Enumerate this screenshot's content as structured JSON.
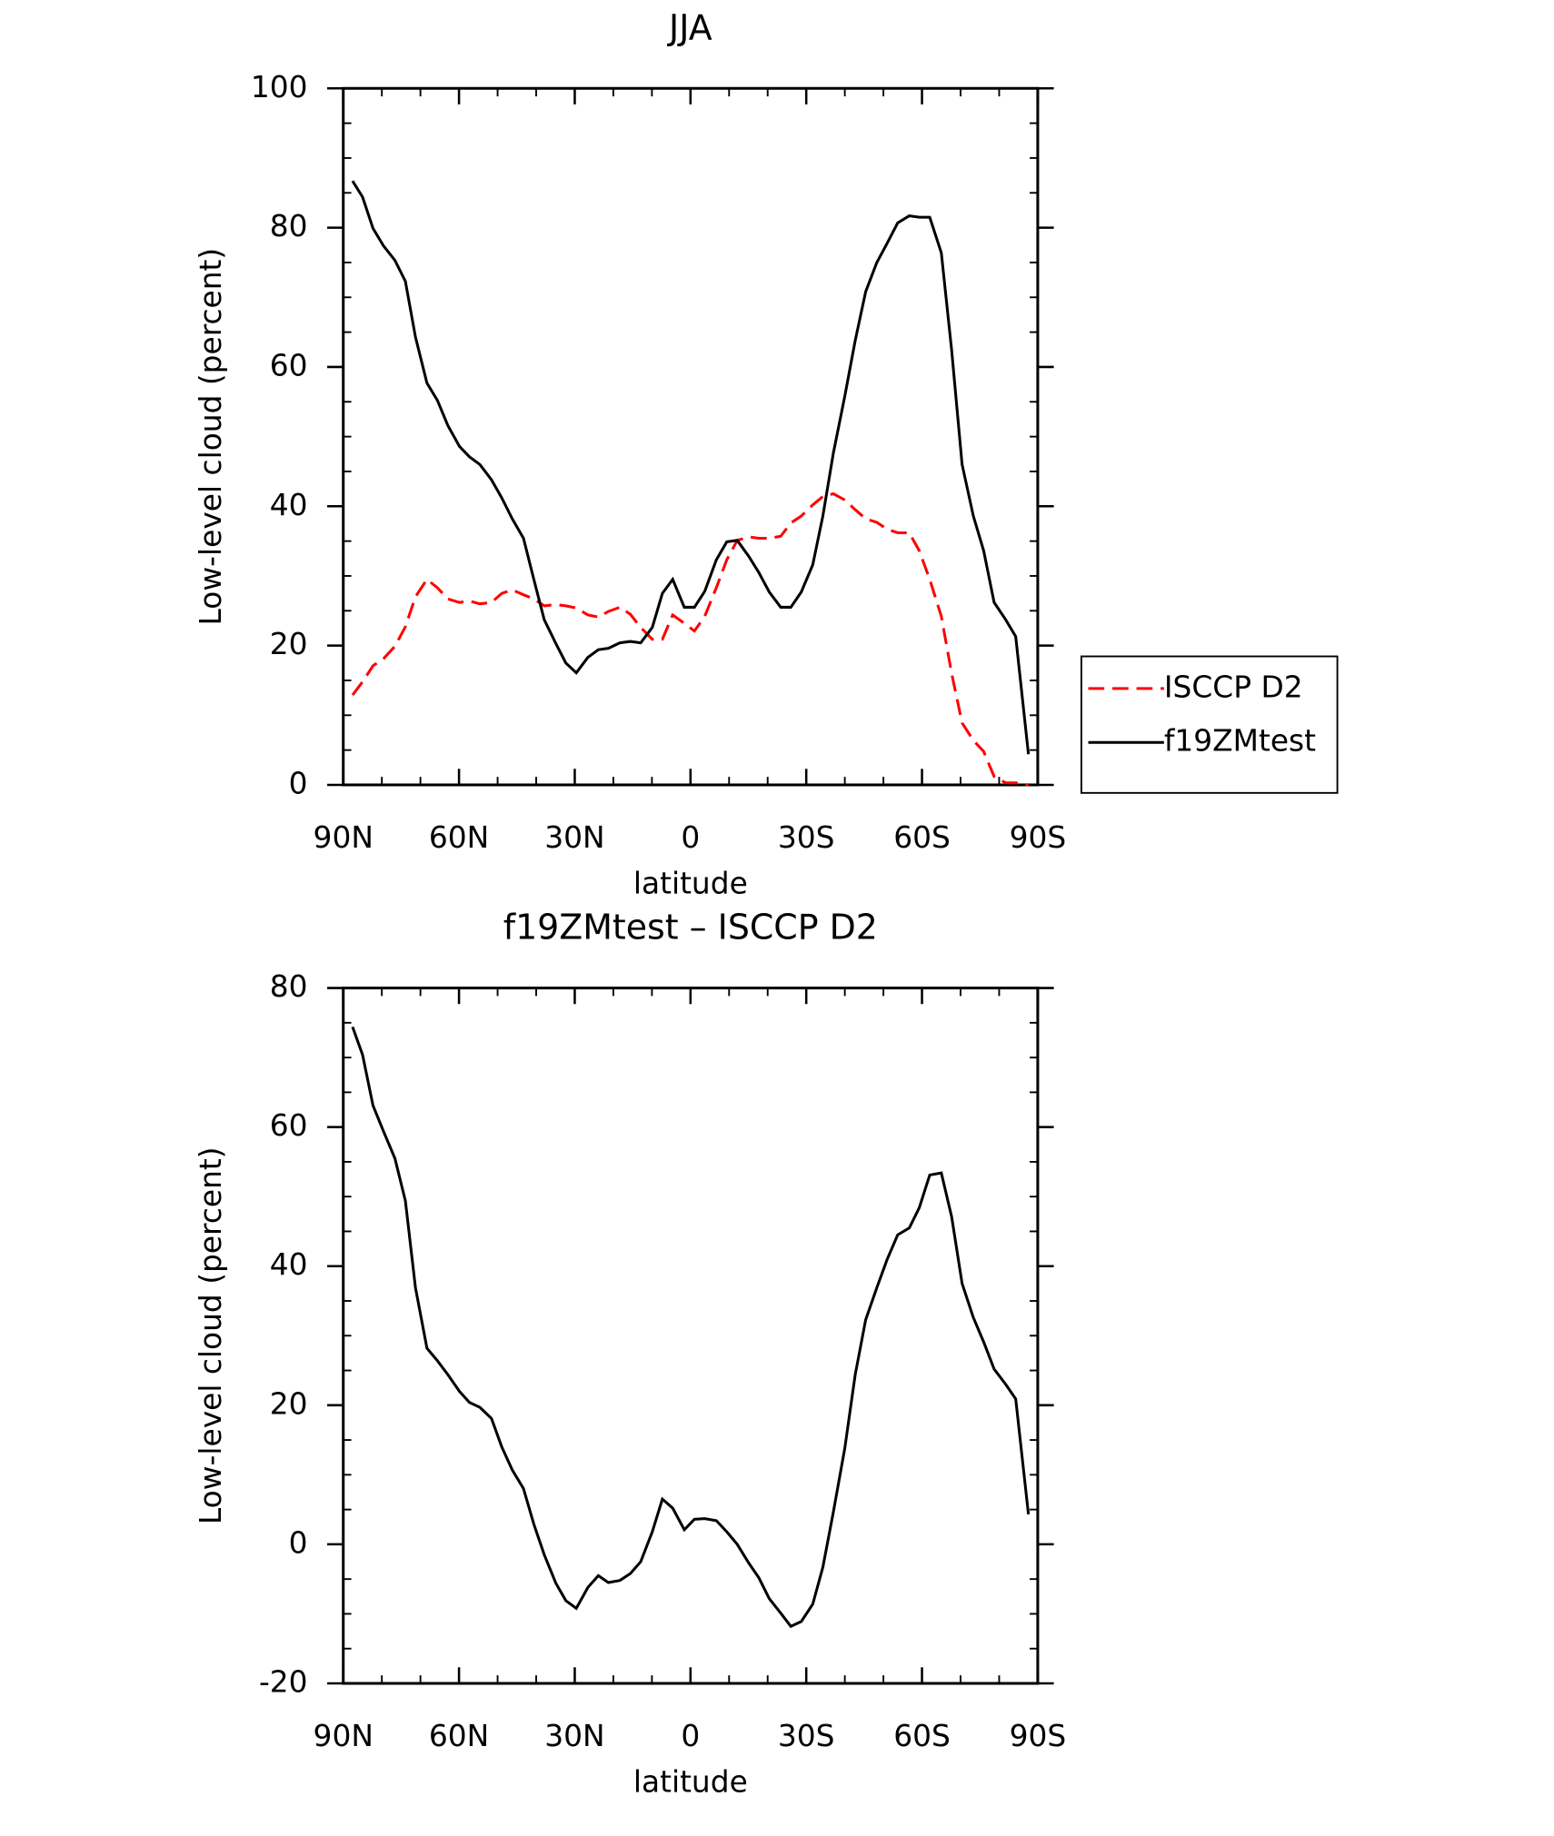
{
  "chart_data": [
    {
      "type": "line",
      "title": "JJA",
      "x_label": "latitude",
      "y_label": "Low-level cloud (percent)",
      "x": [
        87.6,
        85,
        82.3,
        79.6,
        76.6,
        73.9,
        71.3,
        68.3,
        65.6,
        62.9,
        59.9,
        57.3,
        54.6,
        51.6,
        48.9,
        46.2,
        43.3,
        40.6,
        37.9,
        34.9,
        32.3,
        29.6,
        26.6,
        23.9,
        21.3,
        18.3,
        15.6,
        12.9,
        9.9,
        7.3,
        4.6,
        1.6,
        -1,
        -3.7,
        -6.7,
        -9.4,
        -12.1,
        -15.1,
        -17.7,
        -20.4,
        -23.4,
        -26,
        -28.7,
        -31.7,
        -34.3,
        -37,
        -40,
        -42.7,
        -45.4,
        -48.3,
        -51,
        -53.7,
        -56.7,
        -59.3,
        -62,
        -65,
        -67.7,
        -70.4,
        -73.3,
        -76,
        -78.7,
        -81.7,
        -84.3,
        -87.6
      ],
      "series": [
        {
          "name": "ISCCP D2",
          "color": "#ff0000",
          "line_style": "dashed",
          "values": [
            12.9,
            14.8,
            17.1,
            18.1,
            19.9,
            22.7,
            27,
            29.5,
            28.3,
            26.7,
            26.2,
            26.4,
            26,
            26.2,
            27.5,
            28,
            27.3,
            26.7,
            25.7,
            25.9,
            25.7,
            25.4,
            24.4,
            24.1,
            24.9,
            25.5,
            24.5,
            22.6,
            20.9,
            20.9,
            24.4,
            23.2,
            22.1,
            24.2,
            28.3,
            32.3,
            35.1,
            35.6,
            35.4,
            35.4,
            35.7,
            37.6,
            38.6,
            40.2,
            41.4,
            41.8,
            40.9,
            39.5,
            38.2,
            37.7,
            36.7,
            36.2,
            36.2,
            33.6,
            29.5,
            24.2,
            16,
            8.9,
            6.4,
            4.8,
            1.2,
            0.3,
            0.3,
            0
          ]
        },
        {
          "name": "f19ZMtest",
          "color": "#000000",
          "line_style": "solid",
          "values": [
            86.7,
            84.4,
            79.9,
            77.4,
            75.3,
            72.3,
            64.3,
            57.7,
            55.2,
            51.6,
            48.6,
            47.1,
            46,
            43.8,
            41.2,
            38.2,
            35.4,
            29.5,
            23.7,
            20.3,
            17.5,
            16.1,
            18.3,
            19.4,
            19.6,
            20.4,
            20.6,
            20.4,
            22.6,
            27.5,
            29.5,
            25.5,
            25.5,
            27.8,
            32.3,
            34.9,
            35.1,
            32.8,
            30.5,
            27.7,
            25.5,
            25.5,
            27.7,
            31.6,
            38.6,
            47.6,
            55.8,
            63.8,
            70.8,
            75,
            77.8,
            80.7,
            81.7,
            81.5,
            81.5,
            76.4,
            62.4,
            46,
            38.6,
            33.6,
            26.2,
            23.7,
            21.3,
            4.4
          ]
        }
      ],
      "xlim": [
        90,
        -90
      ],
      "xticks": [
        {
          "value": 90,
          "label": "90N"
        },
        {
          "value": 60,
          "label": "60N"
        },
        {
          "value": 30,
          "label": "30N"
        },
        0,
        {
          "value": -30,
          "label": "30S"
        },
        {
          "value": -60,
          "label": "60S"
        },
        {
          "value": -90,
          "label": "90S"
        }
      ],
      "ylim": [
        0,
        100
      ],
      "yticks": [
        0,
        20,
        40,
        60,
        80,
        100
      ],
      "legend": "right"
    },
    {
      "type": "line",
      "title": "f19ZMtest – ISCCP D2",
      "x_label": "latitude",
      "y_label": "Low-level cloud (percent)",
      "x": [
        87.6,
        85,
        82.3,
        79.6,
        76.6,
        73.9,
        71.3,
        68.3,
        65.6,
        62.9,
        59.9,
        57.3,
        54.6,
        51.6,
        48.9,
        46.2,
        43.3,
        40.6,
        37.9,
        34.9,
        32.3,
        29.6,
        26.6,
        23.9,
        21.3,
        18.3,
        15.6,
        12.9,
        9.9,
        7.3,
        4.6,
        1.6,
        -1,
        -3.7,
        -6.7,
        -9.4,
        -12.1,
        -15.1,
        -17.7,
        -20.4,
        -23.4,
        -26,
        -28.7,
        -31.7,
        -34.3,
        -37,
        -40,
        -42.7,
        -45.4,
        -48.3,
        -51,
        -53.7,
        -56.7,
        -59.3,
        -62,
        -65,
        -67.7,
        -70.4,
        -73.3,
        -76,
        -78.7,
        -81.7,
        -84.3,
        -87.6
      ],
      "series": [
        {
          "color": "#000000",
          "line_style": "solid",
          "values": [
            74.4,
            70.4,
            63.1,
            59.4,
            55.5,
            49.4,
            36.9,
            28.2,
            26.4,
            24.4,
            22,
            20.4,
            19.7,
            18.1,
            14,
            10.7,
            8,
            2.9,
            -1.5,
            -5.6,
            -8.1,
            -9.2,
            -6.2,
            -4.5,
            -5.5,
            -5.2,
            -4.2,
            -2.5,
            1.8,
            6.5,
            5.2,
            2.1,
            3.6,
            3.7,
            3.4,
            1.8,
            0,
            -2.7,
            -4.8,
            -7.8,
            -9.9,
            -11.8,
            -11.1,
            -8.6,
            -3.3,
            4.6,
            13.8,
            24.4,
            32.3,
            36.9,
            41,
            44.5,
            45.5,
            48.4,
            53.1,
            53.4,
            47.1,
            37.5,
            32.6,
            29.1,
            25.2,
            23,
            20.9,
            4.3
          ]
        }
      ],
      "xlim": [
        90,
        -90
      ],
      "xticks": [
        {
          "value": 90,
          "label": "90N"
        },
        {
          "value": 60,
          "label": "60N"
        },
        {
          "value": 30,
          "label": "30N"
        },
        0,
        {
          "value": -30,
          "label": "30S"
        },
        {
          "value": -60,
          "label": "60S"
        },
        {
          "value": -90,
          "label": "90S"
        }
      ],
      "ylim": [
        -20,
        80
      ],
      "yticks": [
        -20,
        0,
        20,
        40,
        60,
        80
      ]
    }
  ]
}
